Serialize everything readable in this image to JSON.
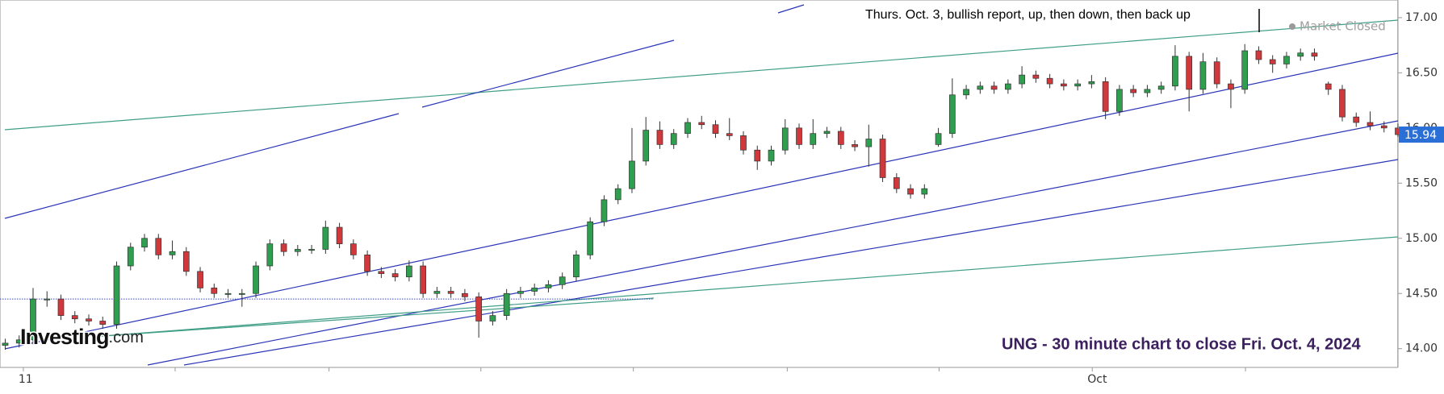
{
  "chart_data": {
    "type": "candlestick",
    "annotation": "Thurs. Oct. 3, bullish report, up, then down, then back up",
    "status": "Market Closed",
    "caption": "UNG - 30 minute chart to close Fri. Oct. 4, 2024",
    "logo": [
      "Investing",
      ".com"
    ],
    "up_color": "#2e9e4f",
    "down_color": "#d0383b",
    "xlim": [
      -0.75,
      200
    ],
    "ylim": [
      13.83,
      17.16
    ],
    "yticks": [
      {
        "value": 14,
        "label": "14.00"
      },
      {
        "value": 14.5,
        "label": "14.50"
      },
      {
        "value": 15,
        "label": "15.00"
      },
      {
        "value": 15.5,
        "label": "15.50"
      },
      {
        "value": 16,
        "label": "16.00"
      },
      {
        "value": 16.5,
        "label": "16.50"
      },
      {
        "value": 17,
        "label": "17.00"
      }
    ],
    "xticks": [
      {
        "value": 2.6,
        "label": "11"
      },
      {
        "value": 24.4,
        "label": null
      },
      {
        "value": 46.5,
        "label": null
      },
      {
        "value": 68.3,
        "label": null
      },
      {
        "value": 90.2,
        "label": null
      },
      {
        "value": 112.3,
        "label": null
      },
      {
        "value": 134.1,
        "label": null
      },
      {
        "value": 156.1,
        "label": "Oct"
      },
      {
        "value": 178.1,
        "label": null
      }
    ],
    "last_price": 15.94,
    "reference_line": 14.45,
    "x": [
      0,
      2,
      4,
      6,
      8,
      10,
      12,
      14,
      16,
      18,
      20,
      22,
      24,
      26,
      28,
      30,
      32,
      34,
      36,
      38,
      40,
      42,
      44,
      46,
      48,
      50,
      52,
      54,
      56,
      58,
      60,
      62,
      64,
      66,
      68,
      70,
      72,
      74,
      76,
      78,
      80,
      82,
      84,
      86,
      88,
      90,
      92,
      94,
      96,
      98,
      100,
      102,
      104,
      106,
      108,
      110,
      112,
      114,
      116,
      118,
      120,
      122,
      124,
      126,
      128,
      130,
      132,
      134,
      136,
      138,
      140,
      142,
      144,
      146,
      148,
      150,
      152,
      154,
      156,
      158,
      160,
      162,
      164,
      166,
      168,
      170,
      172,
      174,
      176,
      178,
      180,
      182,
      184,
      186,
      188,
      190,
      192,
      194,
      196,
      198,
      200
    ],
    "open": [
      14.03,
      14.05,
      14.08,
      14.45,
      14.45,
      14.3,
      14.27,
      14.25,
      14.22,
      14.75,
      14.92,
      15.0,
      14.85,
      14.88,
      14.7,
      14.55,
      14.5,
      14.5,
      14.5,
      14.75,
      14.95,
      14.88,
      14.9,
      14.9,
      15.1,
      14.95,
      14.85,
      14.7,
      14.68,
      14.65,
      14.75,
      14.5,
      14.52,
      14.5,
      14.47,
      14.25,
      14.3,
      14.5,
      14.52,
      14.55,
      14.58,
      14.65,
      14.85,
      15.15,
      15.35,
      15.45,
      15.7,
      15.98,
      15.85,
      15.95,
      16.05,
      16.03,
      15.95,
      15.93,
      15.8,
      15.7,
      15.8,
      16.0,
      15.85,
      15.95,
      15.97,
      15.85,
      15.83,
      15.9,
      15.55,
      15.45,
      15.4,
      15.85,
      15.95,
      16.3,
      16.35,
      16.38,
      16.35,
      16.4,
      16.48,
      16.45,
      16.4,
      16.38,
      16.4,
      16.42,
      16.15,
      16.35,
      16.32,
      16.35,
      16.38,
      16.65,
      16.35,
      16.6,
      16.4,
      16.35,
      16.7,
      16.62,
      16.58,
      16.65,
      16.68,
      16.4,
      16.35,
      16.1,
      16.05,
      16.02,
      16.0
    ],
    "high": [
      14.09,
      14.12,
      14.55,
      14.52,
      14.49,
      14.34,
      14.31,
      14.29,
      14.79,
      14.96,
      15.04,
      15.04,
      14.98,
      14.92,
      14.74,
      14.59,
      14.54,
      14.54,
      14.79,
      14.99,
      14.99,
      14.94,
      14.94,
      15.16,
      15.14,
      14.99,
      14.89,
      14.74,
      14.72,
      14.8,
      14.79,
      14.56,
      14.56,
      14.54,
      14.51,
      14.34,
      14.54,
      14.56,
      14.59,
      14.62,
      14.69,
      14.89,
      15.19,
      15.39,
      15.49,
      16.0,
      16.1,
      16.06,
      15.99,
      16.09,
      16.11,
      16.07,
      16.09,
      15.97,
      15.84,
      15.84,
      16.08,
      16.04,
      16.08,
      16.01,
      16.01,
      15.89,
      16.03,
      15.94,
      15.59,
      15.49,
      15.49,
      16.0,
      16.45,
      16.39,
      16.42,
      16.42,
      16.44,
      16.56,
      16.52,
      16.49,
      16.44,
      16.44,
      16.48,
      16.46,
      16.39,
      16.39,
      16.39,
      16.42,
      16.75,
      16.69,
      16.68,
      16.64,
      16.44,
      16.76,
      16.74,
      16.66,
      16.69,
      16.72,
      16.72,
      16.42,
      16.39,
      16.14,
      16.15,
      16.06,
      16.04
    ],
    "low": [
      13.99,
      14.01,
      14.04,
      14.38,
      14.26,
      14.23,
      14.21,
      14.18,
      14.18,
      14.71,
      14.88,
      14.81,
      14.81,
      14.66,
      14.51,
      14.46,
      14.46,
      14.38,
      14.46,
      14.71,
      14.84,
      14.84,
      14.86,
      14.86,
      14.91,
      14.81,
      14.66,
      14.64,
      14.61,
      14.61,
      14.46,
      14.46,
      14.46,
      14.43,
      14.1,
      14.21,
      14.26,
      14.46,
      14.48,
      14.51,
      14.54,
      14.61,
      14.81,
      15.11,
      15.31,
      15.41,
      15.66,
      15.81,
      15.81,
      15.91,
      15.99,
      15.91,
      15.89,
      15.76,
      15.62,
      15.66,
      15.76,
      15.81,
      15.81,
      15.91,
      15.81,
      15.79,
      15.65,
      15.51,
      15.41,
      15.36,
      15.36,
      15.83,
      15.91,
      16.26,
      16.31,
      16.31,
      16.31,
      16.36,
      16.41,
      16.36,
      16.34,
      16.34,
      16.36,
      16.08,
      16.11,
      16.28,
      16.28,
      16.31,
      16.34,
      16.15,
      16.31,
      16.36,
      16.18,
      16.31,
      16.58,
      16.5,
      16.54,
      16.61,
      16.61,
      16.3,
      16.06,
      16.01,
      15.98,
      15.96,
      15.92
    ],
    "close": [
      14.05,
      14.08,
      14.45,
      14.45,
      14.3,
      14.27,
      14.25,
      14.22,
      14.75,
      14.92,
      15.0,
      14.85,
      14.88,
      14.7,
      14.55,
      14.5,
      14.5,
      14.5,
      14.75,
      14.95,
      14.88,
      14.9,
      14.9,
      15.1,
      14.95,
      14.85,
      14.7,
      14.68,
      14.65,
      14.75,
      14.5,
      14.52,
      14.5,
      14.47,
      14.25,
      14.3,
      14.5,
      14.52,
      14.55,
      14.58,
      14.65,
      14.85,
      15.15,
      15.35,
      15.45,
      15.7,
      15.98,
      15.85,
      15.95,
      16.05,
      16.03,
      15.95,
      15.93,
      15.8,
      15.7,
      15.8,
      16.0,
      15.85,
      15.95,
      15.97,
      15.85,
      15.83,
      15.9,
      15.55,
      15.45,
      15.4,
      15.45,
      15.95,
      16.3,
      16.35,
      16.38,
      16.35,
      16.4,
      16.48,
      16.45,
      16.4,
      16.38,
      16.4,
      16.42,
      16.15,
      16.35,
      16.32,
      16.35,
      16.38,
      16.65,
      16.35,
      16.6,
      16.4,
      16.35,
      16.7,
      16.62,
      16.58,
      16.65,
      16.68,
      16.65,
      16.35,
      16.1,
      16.05,
      16.02,
      16.0,
      15.94
    ]
  }
}
